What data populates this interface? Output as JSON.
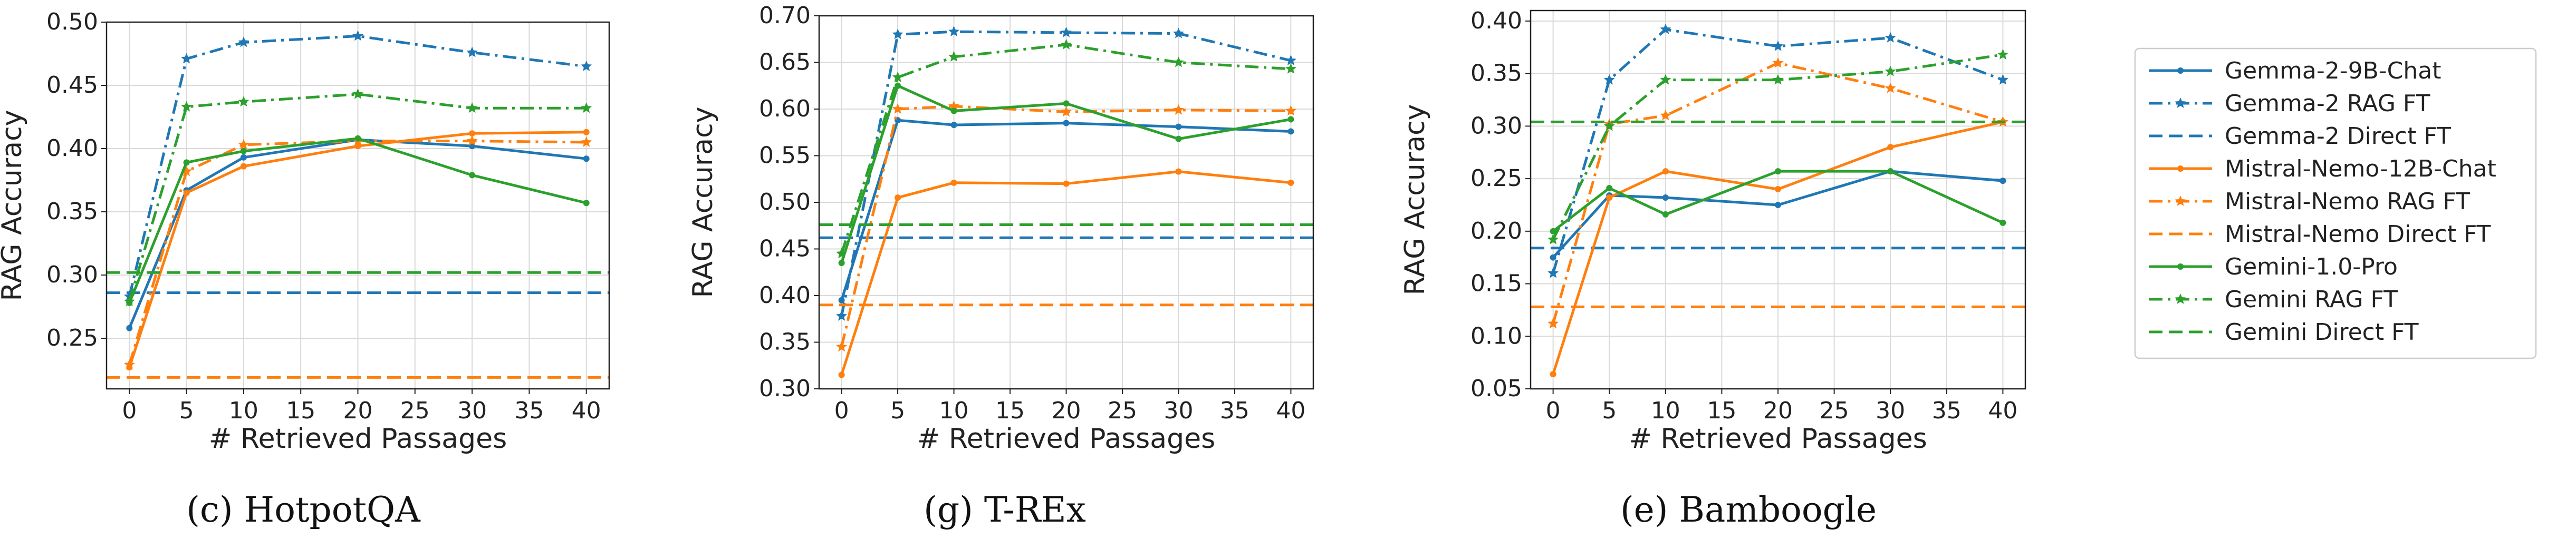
{
  "chart_data": [
    {
      "type": "line",
      "title": "",
      "caption": "(c) HotpotQA",
      "xlabel": "# Retrieved Passages",
      "ylabel": "RAG Accuracy",
      "xlim": [
        -2,
        42
      ],
      "ylim": [
        0.21,
        0.5
      ],
      "x_ticks": [
        0,
        5,
        10,
        15,
        20,
        25,
        30,
        35,
        40
      ],
      "y_ticks": [
        0.25,
        0.3,
        0.35,
        0.4,
        0.45,
        0.5
      ],
      "x": [
        0,
        5,
        10,
        20,
        30,
        40
      ],
      "series": [
        {
          "name": "Gemma-2-9B-Chat",
          "values": [
            0.258,
            0.367,
            0.393,
            0.407,
            0.402,
            0.392
          ]
        },
        {
          "name": "Gemma-2 RAG FT",
          "values": [
            0.283,
            0.471,
            0.484,
            0.489,
            0.476,
            0.465
          ]
        },
        {
          "name": "Gemma-2 Direct FT",
          "constant": 0.286
        },
        {
          "name": "Mistral-Nemo-12B-Chat",
          "values": [
            0.227,
            0.365,
            0.386,
            0.402,
            0.412,
            0.413
          ]
        },
        {
          "name": "Mistral-Nemo RAG FT",
          "values": [
            0.229,
            0.382,
            0.403,
            0.406,
            0.406,
            0.405
          ]
        },
        {
          "name": "Mistral-Nemo Direct FT",
          "constant": 0.219
        },
        {
          "name": "Gemini-1.0-Pro",
          "values": [
            0.278,
            0.389,
            0.398,
            0.408,
            0.379,
            0.357
          ]
        },
        {
          "name": "Gemini RAG FT",
          "values": [
            0.279,
            0.433,
            0.437,
            0.443,
            0.432,
            0.432
          ]
        },
        {
          "name": "Gemini Direct FT",
          "constant": 0.302
        }
      ]
    },
    {
      "type": "line",
      "title": "",
      "caption": "(g) T-REx",
      "xlabel": "# Retrieved Passages",
      "ylabel": "RAG Accuracy",
      "xlim": [
        -2,
        42
      ],
      "ylim": [
        0.3,
        0.7
      ],
      "x_ticks": [
        0,
        5,
        10,
        15,
        20,
        25,
        30,
        35,
        40
      ],
      "y_ticks": [
        0.3,
        0.35,
        0.4,
        0.45,
        0.5,
        0.55,
        0.6,
        0.65,
        0.7
      ],
      "x": [
        0,
        5,
        10,
        20,
        30,
        40
      ],
      "series": [
        {
          "name": "Gemma-2-9B-Chat",
          "values": [
            0.395,
            0.588,
            0.583,
            0.585,
            0.581,
            0.576
          ]
        },
        {
          "name": "Gemma-2 RAG FT",
          "values": [
            0.378,
            0.68,
            0.683,
            0.682,
            0.681,
            0.652
          ]
        },
        {
          "name": "Gemma-2 Direct FT",
          "constant": 0.462
        },
        {
          "name": "Mistral-Nemo-12B-Chat",
          "values": [
            0.315,
            0.505,
            0.521,
            0.52,
            0.533,
            0.521
          ]
        },
        {
          "name": "Mistral-Nemo RAG FT",
          "values": [
            0.345,
            0.6,
            0.603,
            0.597,
            0.599,
            0.598
          ]
        },
        {
          "name": "Mistral-Nemo Direct FT",
          "constant": 0.39
        },
        {
          "name": "Gemini-1.0-Pro",
          "values": [
            0.435,
            0.625,
            0.598,
            0.606,
            0.568,
            0.589
          ]
        },
        {
          "name": "Gemini RAG FT",
          "values": [
            0.445,
            0.634,
            0.656,
            0.669,
            0.65,
            0.643
          ]
        },
        {
          "name": "Gemini Direct FT",
          "constant": 0.476
        }
      ]
    },
    {
      "type": "line",
      "title": "",
      "caption": "(e) Bamboogle",
      "xlabel": "# Retrieved Passages",
      "ylabel": "RAG Accuracy",
      "xlim": [
        -2,
        42
      ],
      "ylim": [
        0.05,
        0.41
      ],
      "x_ticks": [
        0,
        5,
        10,
        15,
        20,
        25,
        30,
        35,
        40
      ],
      "y_ticks": [
        0.05,
        0.1,
        0.15,
        0.2,
        0.25,
        0.3,
        0.35,
        0.4
      ],
      "x": [
        0,
        5,
        10,
        20,
        30,
        40
      ],
      "series": [
        {
          "name": "Gemma-2-9B-Chat",
          "values": [
            0.175,
            0.234,
            0.232,
            0.225,
            0.257,
            0.248
          ]
        },
        {
          "name": "Gemma-2 RAG FT",
          "values": [
            0.16,
            0.344,
            0.392,
            0.376,
            0.384,
            0.344
          ]
        },
        {
          "name": "Gemma-2 Direct FT",
          "constant": 0.184
        },
        {
          "name": "Mistral-Nemo-12B-Chat",
          "values": [
            0.064,
            0.232,
            0.257,
            0.24,
            0.28,
            0.304
          ]
        },
        {
          "name": "Mistral-Nemo RAG FT",
          "values": [
            0.112,
            0.302,
            0.31,
            0.36,
            0.336,
            0.304
          ]
        },
        {
          "name": "Mistral-Nemo Direct FT",
          "constant": 0.128
        },
        {
          "name": "Gemini-1.0-Pro",
          "values": [
            0.2,
            0.241,
            0.216,
            0.257,
            0.257,
            0.208
          ]
        },
        {
          "name": "Gemini RAG FT",
          "values": [
            0.192,
            0.3,
            0.344,
            0.344,
            0.352,
            0.368
          ]
        },
        {
          "name": "Gemini Direct FT",
          "constant": 0.304
        }
      ]
    }
  ],
  "legend": {
    "position": "right",
    "entries": [
      {
        "label": "Gemma-2-9B-Chat",
        "color": "#1f77b4",
        "style": "solid-marker"
      },
      {
        "label": "Gemma-2 RAG FT",
        "color": "#1f77b4",
        "style": "dashdot-marker"
      },
      {
        "label": "Gemma-2 Direct FT",
        "color": "#1f77b4",
        "style": "dashed"
      },
      {
        "label": "Mistral-Nemo-12B-Chat",
        "color": "#ff7f0e",
        "style": "solid-marker"
      },
      {
        "label": "Mistral-Nemo RAG FT",
        "color": "#ff7f0e",
        "style": "dashdot-marker"
      },
      {
        "label": "Mistral-Nemo Direct FT",
        "color": "#ff7f0e",
        "style": "dashed"
      },
      {
        "label": "Gemini-1.0-Pro",
        "color": "#2ca02c",
        "style": "solid-marker"
      },
      {
        "label": "Gemini RAG FT",
        "color": "#2ca02c",
        "style": "dashdot-marker"
      },
      {
        "label": "Gemini Direct FT",
        "color": "#2ca02c",
        "style": "dashed"
      }
    ]
  }
}
